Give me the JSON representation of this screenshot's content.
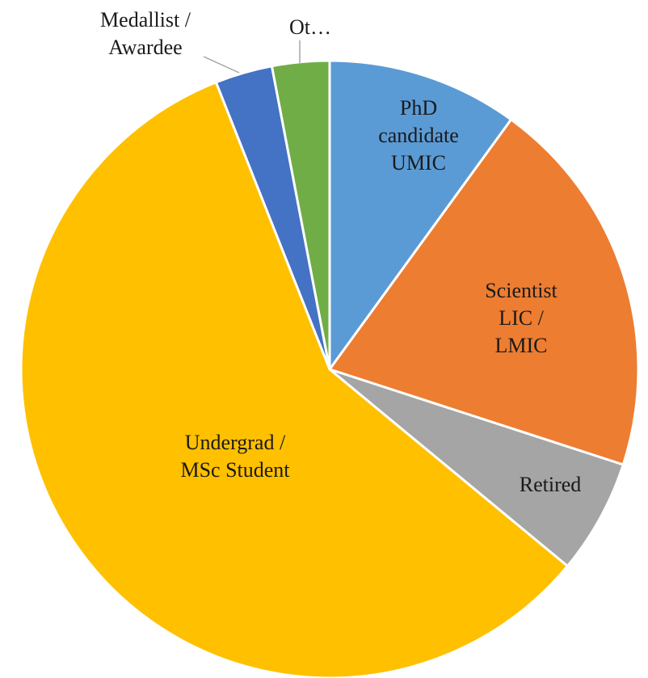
{
  "chart_data": {
    "type": "pie",
    "categories": [
      "PhD\ncandidate\nUMIC",
      "Scientist\nLIC /\nLMIC",
      "Retired",
      "Undergrad /\nMSc Student",
      "Medallist /\nAwardee",
      "Ot…"
    ],
    "values": [
      10,
      20,
      6,
      58,
      3,
      3
    ],
    "colors": [
      "#5b9bd5",
      "#ed7d31",
      "#a5a5a5",
      "#ffc000",
      "#4472c4",
      "#70ad47"
    ]
  }
}
